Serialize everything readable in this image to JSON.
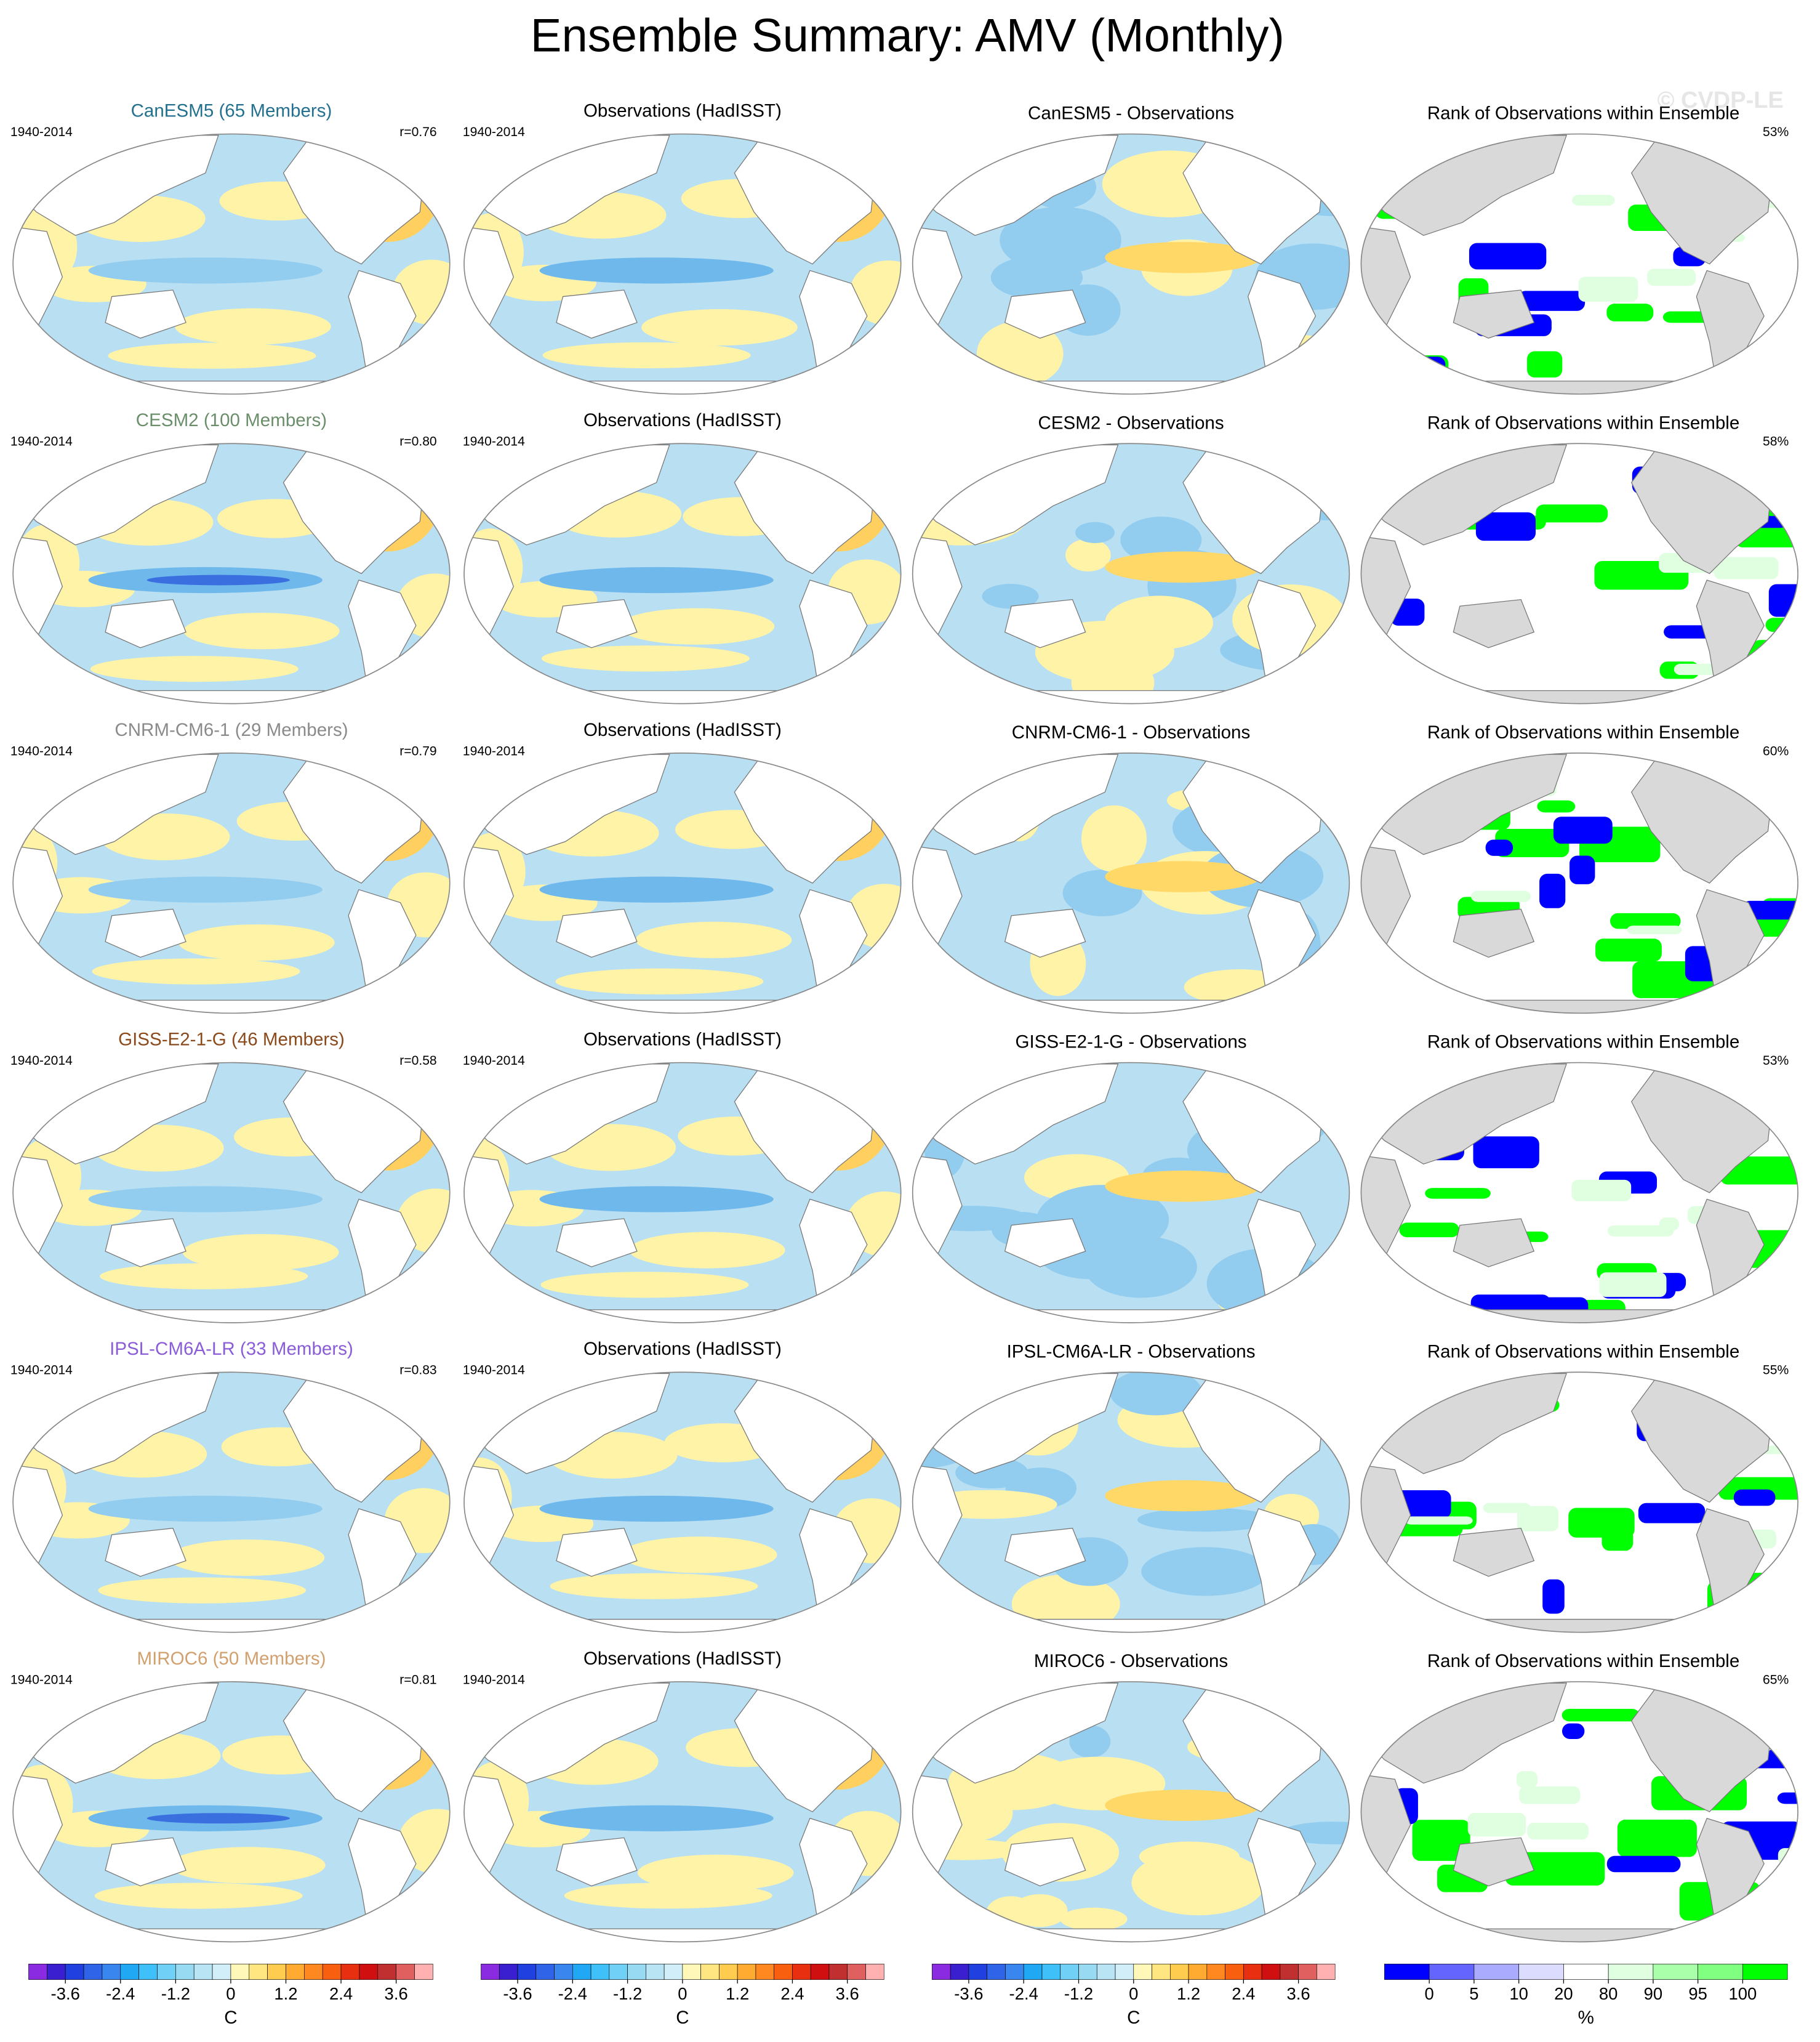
{
  "title": "Ensemble Summary: AMV (Monthly)",
  "watermark": "© CVDP-LE",
  "rows": [
    {
      "model_label": "CanESM5 (65 Members)",
      "label_color": "#23718f",
      "period": "1940-2014",
      "correlation": "r=0.76",
      "obs_period": "1940-2014",
      "obs_title": "Observations (HadISST)",
      "diff_title": "CanESM5 - Observations",
      "rank_title": "Rank of Observations within Ensemble",
      "rank_percent": "53%"
    },
    {
      "model_label": "CESM2 (100 Members)",
      "label_color": "#6a8f6a",
      "period": "1940-2014",
      "correlation": "r=0.80",
      "obs_period": "1940-2014",
      "obs_title": "Observations (HadISST)",
      "diff_title": "CESM2 - Observations",
      "rank_title": "Rank of Observations within Ensemble",
      "rank_percent": "58%"
    },
    {
      "model_label": "CNRM-CM6-1 (29 Members)",
      "label_color": "#8a8a8a",
      "period": "1940-2014",
      "correlation": "r=0.79",
      "obs_period": "1940-2014",
      "obs_title": "Observations (HadISST)",
      "diff_title": "CNRM-CM6-1 - Observations",
      "rank_title": "Rank of Observations within Ensemble",
      "rank_percent": "60%"
    },
    {
      "model_label": "GISS-E2-1-G (46 Members)",
      "label_color": "#8b4a1c",
      "period": "1940-2014",
      "correlation": "r=0.58",
      "obs_period": "1940-2014",
      "obs_title": "Observations (HadISST)",
      "diff_title": "GISS-E2-1-G - Observations",
      "rank_title": "Rank of Observations within Ensemble",
      "rank_percent": "53%"
    },
    {
      "model_label": "IPSL-CM6A-LR (33 Members)",
      "label_color": "#8a5cd8",
      "period": "1940-2014",
      "correlation": "r=0.83",
      "obs_period": "1940-2014",
      "obs_title": "Observations (HadISST)",
      "diff_title": "IPSL-CM6A-LR - Observations",
      "rank_title": "Rank of Observations within Ensemble",
      "rank_percent": "55%"
    },
    {
      "model_label": "MIROC6 (50 Members)",
      "label_color": "#d2a06e",
      "period": "1940-2014",
      "correlation": "r=0.81",
      "obs_period": "1940-2014",
      "obs_title": "Observations (HadISST)",
      "diff_title": "MIROC6 - Observations",
      "rank_title": "Rank of Observations within Ensemble",
      "rank_percent": "65%"
    }
  ],
  "colorbars": [
    {
      "kind": "linear",
      "lim": [
        -4.4,
        4.4
      ],
      "ticks": [
        -3.6,
        -2.4,
        -1.2,
        0,
        1.2,
        2.4,
        3.6
      ],
      "unit": "C",
      "colors": [
        "#8a2be2",
        "#3a1fd0",
        "#2040e0",
        "#3064e8",
        "#3a86ef",
        "#20a8f5",
        "#40c0f8",
        "#70d0f5",
        "#98daf2",
        "#b8e4f4",
        "#d2eef8",
        "#fff8b8",
        "#ffe680",
        "#ffcc50",
        "#ffaa30",
        "#ff8820",
        "#f86010",
        "#e83010",
        "#d01010",
        "#c03030",
        "#e06060",
        "#ffb0b0"
      ]
    },
    {
      "kind": "linear",
      "lim": [
        -4.4,
        4.4
      ],
      "ticks": [
        -3.6,
        -2.4,
        -1.2,
        0,
        1.2,
        2.4,
        3.6
      ],
      "unit": "C",
      "colors": [
        "#8a2be2",
        "#3a1fd0",
        "#2040e0",
        "#3064e8",
        "#3a86ef",
        "#20a8f5",
        "#40c0f8",
        "#70d0f5",
        "#98daf2",
        "#b8e4f4",
        "#d2eef8",
        "#fff8b8",
        "#ffe680",
        "#ffcc50",
        "#ffaa30",
        "#ff8820",
        "#f86010",
        "#e83010",
        "#d01010",
        "#c03030",
        "#e06060",
        "#ffb0b0"
      ]
    },
    {
      "kind": "linear",
      "lim": [
        -4.4,
        4.4
      ],
      "ticks": [
        -3.6,
        -2.4,
        -1.2,
        0,
        1.2,
        2.4,
        3.6
      ],
      "unit": "C",
      "colors": [
        "#8a2be2",
        "#3a1fd0",
        "#2040e0",
        "#3064e8",
        "#3a86ef",
        "#20a8f5",
        "#40c0f8",
        "#70d0f5",
        "#98daf2",
        "#b8e4f4",
        "#d2eef8",
        "#fff8b8",
        "#ffe680",
        "#ffcc50",
        "#ffaa30",
        "#ff8820",
        "#f86010",
        "#e83010",
        "#d01010",
        "#c03030",
        "#e06060",
        "#ffb0b0"
      ]
    },
    {
      "kind": "categorical",
      "ticks": [
        0,
        5,
        10,
        20,
        80,
        90,
        95,
        100
      ],
      "unit": "%",
      "colors": [
        "#0000ff",
        "#6464ff",
        "#aaaaff",
        "#dcdcff",
        "#ffffff",
        "#e0ffe0",
        "#aaffaa",
        "#80ff80",
        "#00ff00"
      ]
    }
  ]
}
